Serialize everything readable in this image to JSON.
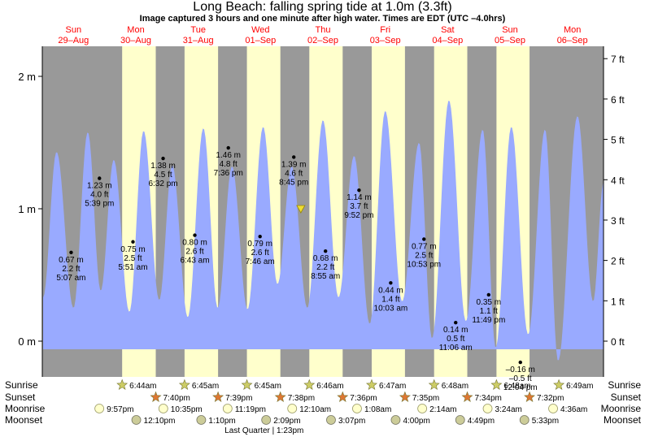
{
  "title": "Long Beach: falling  spring tide at 1.0m (3.3ft)",
  "subtitle": "Image captured 3 hours and one minute after high water. Times are EDT (UTC –4.0hrs)",
  "colors": {
    "night": "#999999",
    "day": "#ffffcc",
    "tide": "#99aaff",
    "date": "#ff0000",
    "sunrise_star": "#cccc66",
    "sunset_star": "#dd7733",
    "moonrise": "#ffffcc",
    "moonset": "#cccc99"
  },
  "days": [
    {
      "dow": "Sun",
      "date": "29–Aug"
    },
    {
      "dow": "Mon",
      "date": "30–Aug"
    },
    {
      "dow": "Tue",
      "date": "31–Aug"
    },
    {
      "dow": "Wed",
      "date": "01–Sep"
    },
    {
      "dow": "Thu",
      "date": "02–Sep"
    },
    {
      "dow": "Fri",
      "date": "03–Sep"
    },
    {
      "dow": "Sat",
      "date": "04–Sep"
    },
    {
      "dow": "Sun",
      "date": "05–Sep"
    },
    {
      "dow": "Mon",
      "date": "06–Sep"
    }
  ],
  "chart_data": {
    "type": "area",
    "title": "Long Beach: falling  spring tide at 1.0m (3.3ft)",
    "x_unit": "hours since 29-Aug 00:00 EDT",
    "x_range": [
      0,
      216
    ],
    "y_unit": "m",
    "ylim": [
      -0.25,
      2.2
    ],
    "left_ticks": [
      {
        "v": 0,
        "label": "0 m"
      },
      {
        "v": 1,
        "label": "1 m"
      },
      {
        "v": 2,
        "label": "2 m"
      }
    ],
    "right_ticks": [
      {
        "v": 0,
        "label": "0 ft"
      },
      {
        "v": 1,
        "label": "1 ft"
      },
      {
        "v": 2,
        "label": "2 ft"
      },
      {
        "v": 3,
        "label": "3 ft"
      },
      {
        "v": 4,
        "label": "4 ft"
      },
      {
        "v": 5,
        "label": "5 ft"
      },
      {
        "v": 6,
        "label": "6 ft"
      },
      {
        "v": 7,
        "label": "7 ft"
      }
    ],
    "series_start": 0.3,
    "series_end": 216,
    "extremes": [
      {
        "t": 0.3,
        "h": 0.33
      },
      {
        "t": 5.5,
        "h": 1.43
      },
      {
        "t": 12.0,
        "h": 0.25
      },
      {
        "t": 17.5,
        "h": 1.58
      },
      {
        "t": 22.5,
        "h": 0.38
      },
      {
        "t": 27.5,
        "h": 1.37
      },
      {
        "t": 33.5,
        "h": 0.22
      },
      {
        "t": 39.0,
        "h": 1.59
      },
      {
        "t": 45.0,
        "h": 0.31
      },
      {
        "t": 50.0,
        "h": 1.33
      },
      {
        "t": 56.0,
        "h": 0.18
      },
      {
        "t": 62.0,
        "h": 1.61
      },
      {
        "t": 67.5,
        "h": 0.25
      },
      {
        "t": 73.0,
        "h": 1.32
      },
      {
        "t": 79.0,
        "h": 0.24
      },
      {
        "t": 85.0,
        "h": 1.62
      },
      {
        "t": 90.5,
        "h": 0.43
      },
      {
        "t": 96.0,
        "h": 1.32
      },
      {
        "t": 102.0,
        "h": 0.25
      },
      {
        "t": 108.0,
        "h": 1.67
      },
      {
        "t": 114.0,
        "h": 0.33
      },
      {
        "t": 120.0,
        "h": 1.4
      },
      {
        "t": 126.0,
        "h": 0.13
      },
      {
        "t": 132.0,
        "h": 1.74
      },
      {
        "t": 138.5,
        "h": 0.3
      },
      {
        "t": 145.0,
        "h": 1.5
      },
      {
        "t": 150.0,
        "h": 0.02
      },
      {
        "t": 156.5,
        "h": 1.82
      },
      {
        "t": 163.0,
        "h": 0.15
      },
      {
        "t": 169.5,
        "h": 1.6
      },
      {
        "t": 174.5,
        "h": -0.05
      },
      {
        "t": 180.5,
        "h": 1.62
      },
      {
        "t": 187.0,
        "h": 0.05
      },
      {
        "t": 193.5,
        "h": 1.6
      },
      {
        "t": 198.5,
        "h": -0.15
      },
      {
        "t": 206.0,
        "h": 1.7
      },
      {
        "t": 212.0,
        "h": 0.3
      },
      {
        "t": 216.0,
        "h": 1.2
      }
    ],
    "cycles": [
      {
        "sunrise_t": 30.73,
        "sunset_t": 43.67
      },
      {
        "sunrise_t": 54.75,
        "sunset_t": 67.65
      },
      {
        "sunrise_t": 78.75,
        "sunset_t": 91.63
      },
      {
        "sunrise_t": 102.77,
        "sunset_t": 115.6
      },
      {
        "sunrise_t": 126.78,
        "sunset_t": 139.58
      },
      {
        "sunrise_t": 150.8,
        "sunset_t": 163.57
      },
      {
        "sunrise_t": 174.8,
        "sunset_t": 187.53
      }
    ],
    "annotations": [
      {
        "t": 11.1,
        "h": 0.67,
        "m": "0.67 m",
        "ft": "2.2 ft",
        "time": "5:07 am"
      },
      {
        "t": 22.0,
        "h": 1.23,
        "m": "1.23 m",
        "ft": "4.0 ft",
        "time": "5:39 pm"
      },
      {
        "t": 34.9,
        "h": 0.75,
        "m": "0.75 m",
        "ft": "2.5 ft",
        "time": "5:51 am"
      },
      {
        "t": 46.5,
        "h": 1.38,
        "m": "1.38 m",
        "ft": "4.5 ft",
        "time": "6:32 pm"
      },
      {
        "t": 58.7,
        "h": 0.8,
        "m": "0.80 m",
        "ft": "2.6 ft",
        "time": "6:43 am"
      },
      {
        "t": 71.6,
        "h": 1.46,
        "m": "1.46 m",
        "ft": "4.8 ft",
        "time": "7:36 pm"
      },
      {
        "t": 83.8,
        "h": 0.79,
        "m": "0.79 m",
        "ft": "2.6 ft",
        "time": "7:46 am"
      },
      {
        "t": 96.8,
        "h": 1.39,
        "m": "1.39 m",
        "ft": "4.6 ft",
        "time": "8:45 pm"
      },
      {
        "t": 109.0,
        "h": 0.68,
        "m": "0.68 m",
        "ft": "2.2 ft",
        "time": "8:55 am"
      },
      {
        "t": 121.9,
        "h": 1.14,
        "m": "1.14 m",
        "ft": "3.7 ft",
        "time": "9:52 pm"
      },
      {
        "t": 134.1,
        "h": 0.44,
        "m": "0.44 m",
        "ft": "1.4 ft",
        "time": "10:03 am"
      },
      {
        "t": 146.9,
        "h": 0.77,
        "m": "0.77 m",
        "ft": "2.5 ft",
        "time": "10:53 pm"
      },
      {
        "t": 159.1,
        "h": 0.14,
        "m": "0.14 m",
        "ft": "0.5 ft",
        "time": "11:06 am"
      },
      {
        "t": 171.8,
        "h": 0.35,
        "m": "0.35 m",
        "ft": "1.1 ft",
        "time": "11:49 pm"
      },
      {
        "t": 184.0,
        "h": -0.16,
        "m": "–0.16 m",
        "ft": "–0.5 ft",
        "time": "12:04 pm"
      }
    ],
    "current_marker": {
      "t": 99.5,
      "h": 1.0
    }
  },
  "bottom_rows": {
    "labels": {
      "sunrise": "Sunrise",
      "sunset": "Sunset",
      "moonrise": "Moonrise",
      "moonset": "Moonset"
    },
    "sunrise": [
      {
        "t": 30.73,
        "label": "6:44am"
      },
      {
        "t": 54.75,
        "label": "6:45am"
      },
      {
        "t": 78.75,
        "label": "6:45am"
      },
      {
        "t": 102.77,
        "label": "6:46am"
      },
      {
        "t": 126.78,
        "label": "6:47am"
      },
      {
        "t": 150.8,
        "label": "6:48am"
      },
      {
        "t": 174.8,
        "label": "6:48am"
      },
      {
        "t": 198.82,
        "label": "6:49am"
      }
    ],
    "sunset": [
      {
        "t": 43.67,
        "label": "7:40pm"
      },
      {
        "t": 67.65,
        "label": "7:39pm"
      },
      {
        "t": 91.63,
        "label": "7:38pm"
      },
      {
        "t": 115.6,
        "label": "7:36pm"
      },
      {
        "t": 139.58,
        "label": "7:35pm"
      },
      {
        "t": 163.57,
        "label": "7:34pm"
      },
      {
        "t": 187.53,
        "label": "7:32pm"
      }
    ],
    "moonrise": [
      {
        "t": 21.95,
        "label": "9:57pm"
      },
      {
        "t": 46.58,
        "label": "10:35pm"
      },
      {
        "t": 71.32,
        "label": "11:19pm"
      },
      {
        "t": 96.17,
        "label": "12:10am"
      },
      {
        "t": 121.13,
        "label": "1:08am"
      },
      {
        "t": 146.23,
        "label": "2:14am"
      },
      {
        "t": 171.4,
        "label": "3:24am"
      },
      {
        "t": 196.6,
        "label": "4:36am"
      }
    ],
    "moonset": [
      {
        "t": 36.17,
        "label": "12:10pm"
      },
      {
        "t": 61.17,
        "label": "1:10pm"
      },
      {
        "t": 86.15,
        "label": "2:09pm"
      },
      {
        "t": 111.12,
        "label": "3:07pm"
      },
      {
        "t": 136.0,
        "label": "4:00pm"
      },
      {
        "t": 160.82,
        "label": "4:49pm"
      },
      {
        "t": 185.55,
        "label": "5:33pm"
      }
    ],
    "moon_phase": {
      "t": 85.4,
      "label": "Last Quarter | 1:23pm"
    }
  }
}
